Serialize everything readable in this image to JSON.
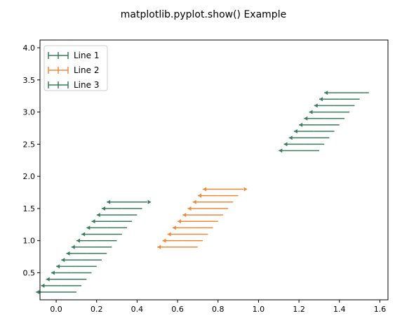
{
  "figure": {
    "suptitle": "matplotlib.pyplot.show() Example"
  },
  "chart_data": {
    "type": "line",
    "title": "matplotlib.pyplot.show() Example",
    "xlabel": "",
    "ylabel": "",
    "xlim": [
      -0.08,
      1.64
    ],
    "ylim": [
      0.08,
      4.12
    ],
    "xticks": [
      "0.0",
      "0.2",
      "0.4",
      "0.6",
      "0.8",
      "1.0",
      "1.2",
      "1.4",
      "1.6"
    ],
    "yticks": [
      "0.5",
      "1.0",
      "1.5",
      "2.0",
      "2.5",
      "3.0",
      "3.5",
      "4.0"
    ],
    "grid": false,
    "legend_position": "upper left",
    "series": [
      {
        "name": "Line 1",
        "color": "#3a7d5c",
        "x": [
          0.0,
          0.1
        ],
        "y": [
          0.2,
          0.2
        ],
        "error_lengths": [
          0.1,
          0.0
        ],
        "arrow_count": 15
      },
      {
        "name": "Line 2",
        "color": "#f0883a",
        "x": [
          0.6,
          0.7
        ],
        "y": [
          0.9,
          0.9
        ],
        "error_lengths": [
          0.1,
          0.0
        ],
        "arrow_count": 10
      },
      {
        "name": "Line 3",
        "color": "#3a7d5c",
        "x": [
          1.2,
          1.3
        ],
        "y": [
          2.4,
          2.4
        ],
        "error_lengths": [
          0.1,
          0.0
        ],
        "arrow_count": 10
      }
    ]
  }
}
